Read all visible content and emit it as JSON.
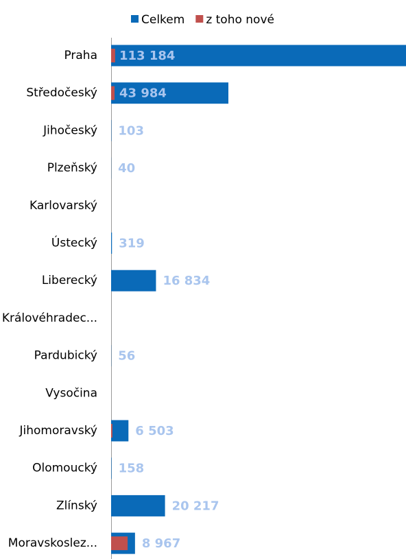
{
  "chart_data": {
    "type": "bar",
    "orientation": "horizontal",
    "categories": [
      "Praha",
      "Středočeský",
      "Jihočeský",
      "Plzeňský",
      "Karlovarský",
      "Ústecký",
      "Liberecký",
      "Královéhradec...",
      "Pardubický",
      "Vysočina",
      "Jihomoravský",
      "Olomoucký",
      "Zlínský",
      "Moravskoslez..."
    ],
    "series": [
      {
        "name": "Celkem",
        "color": "#0a6ab8",
        "values": [
          113184,
          43984,
          103,
          40,
          null,
          319,
          16834,
          null,
          56,
          null,
          6503,
          158,
          20217,
          8967
        ],
        "value_labels": [
          "113 184",
          "43 984",
          "103",
          "40",
          null,
          "319",
          "16 834",
          null,
          "56",
          null,
          "6 503",
          "158",
          "20 217",
          "8 967"
        ]
      },
      {
        "name": "z toho nové",
        "color": "#c0504d",
        "values": [
          1500,
          1300,
          null,
          null,
          null,
          null,
          null,
          null,
          null,
          null,
          500,
          null,
          null,
          6200
        ]
      }
    ],
    "xlim": [
      0,
      110600
    ],
    "legend": "top"
  }
}
